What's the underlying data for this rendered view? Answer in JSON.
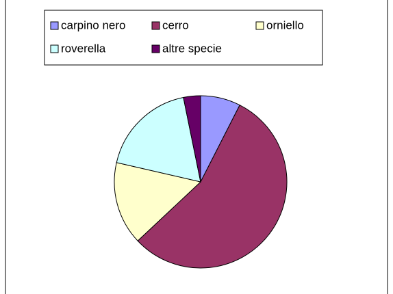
{
  "chart_data": {
    "type": "pie",
    "categories": [
      "carpino nero",
      "cerro",
      "orniello",
      "roverella",
      "altre specie"
    ],
    "values": [
      7.5,
      55.5,
      15.6,
      18.2,
      3.2
    ],
    "colors": [
      "#9999ff",
      "#993366",
      "#ffffcc",
      "#ccffff",
      "#660066"
    ],
    "legend": "top"
  }
}
